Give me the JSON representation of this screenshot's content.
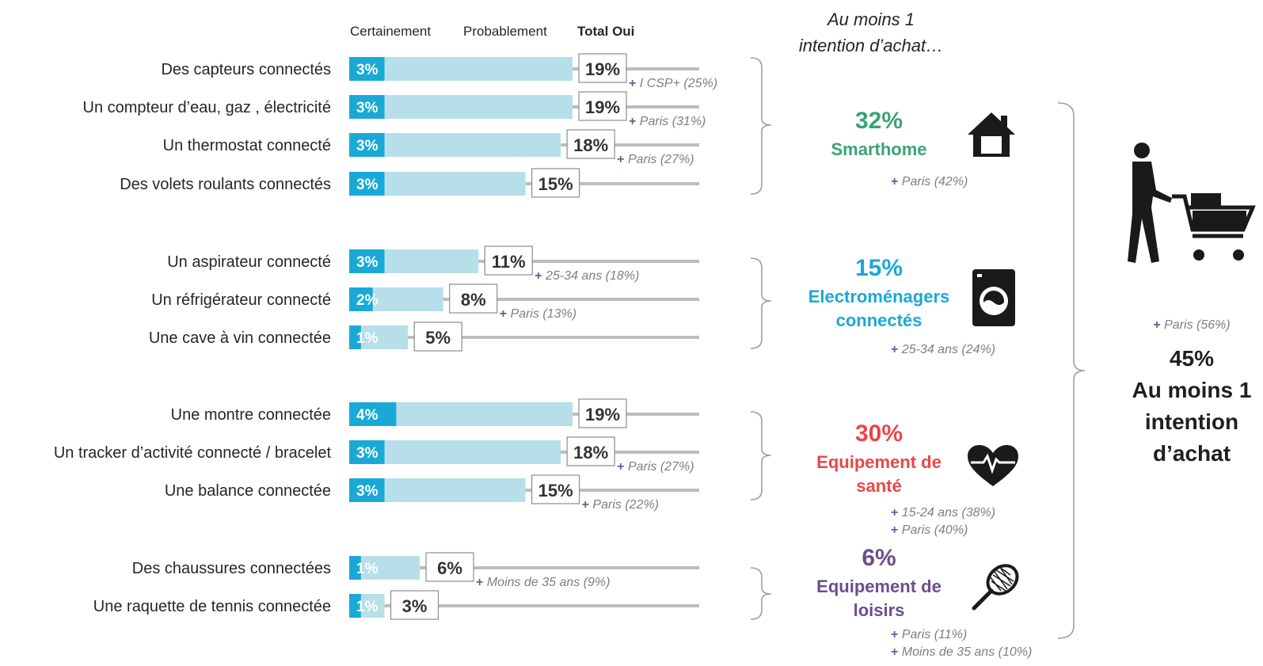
{
  "header": {
    "col_certainement": "Certainement",
    "col_probablement": "Probablement",
    "col_total": "Total Oui",
    "top_note_line1": "Au moins 1",
    "top_note_line2": "intention d’achat…"
  },
  "colors": {
    "certainement": "#1aa9d6",
    "probablement": "#b7dfe9",
    "smarthome": "#3aa374",
    "electromenagers": "#1aa9d6",
    "sante": "#e8474b",
    "loisirs": "#6b4e8f",
    "subgroup_plus": "#6b5b95"
  },
  "chart_data": {
    "type": "bar",
    "orientation": "horizontal",
    "stacked": true,
    "series": [
      {
        "name": "Certainement",
        "values": [
          3,
          3,
          3,
          3,
          3,
          2,
          1,
          4,
          3,
          3,
          1,
          1
        ]
      },
      {
        "name": "Probablement",
        "values": [
          16,
          16,
          15,
          12,
          8,
          6,
          4,
          15,
          15,
          12,
          5,
          2
        ]
      }
    ],
    "categories": [
      "Des capteurs connectés",
      "Un compteur d’eau, gaz , électricité",
      "Un thermostat connecté",
      "Des volets roulants connectés",
      "Un aspirateur connecté",
      "Un réfrigérateur connecté",
      "Une cave à vin connectée",
      "Une montre connectée",
      "Un tracker d’activité connecté /  bracelet",
      "Une balance connectée",
      "Des chaussures connectées",
      "Une raquette de tennis connectée"
    ],
    "cert_labels": [
      "3%",
      "3%",
      "3%",
      "3%",
      "3%",
      "2%",
      "1%",
      "4%",
      "3%",
      "3%",
      "1%",
      "1%"
    ],
    "totals": [
      19,
      19,
      18,
      15,
      11,
      8,
      5,
      19,
      18,
      15,
      6,
      3
    ],
    "total_labels": [
      "19%",
      "19%",
      "18%",
      "15%",
      "11%",
      "8%",
      "5%",
      "19%",
      "18%",
      "15%",
      "6%",
      "3%"
    ],
    "row_notes": [
      "+ I CSP+ (25%)",
      "+ Paris (31%)",
      "+ Paris (27%)",
      "",
      "+ 25-34 ans (18%)",
      "+ Paris (13%)",
      "",
      "",
      "+ Paris (27%)",
      "+ Paris (22%)",
      "+ Moins de 35 ans (9%)",
      ""
    ],
    "groups": [
      {
        "pct": "32%",
        "name_lines": [
          "Smarthome"
        ],
        "notes": [
          "+ Paris (42%)"
        ]
      },
      {
        "pct": "15%",
        "name_lines": [
          "Electroménagers",
          "connectés"
        ],
        "notes": [
          "+ 25-34 ans (24%)"
        ]
      },
      {
        "pct": "30%",
        "name_lines": [
          "Equipement de",
          "santé"
        ],
        "notes": [
          "+ 15-24 ans (38%)",
          "+ Paris (40%)"
        ]
      },
      {
        "pct": "6%",
        "name_lines": [
          "Equipement de",
          "loisirs"
        ],
        "notes": [
          "+ Paris (11%)",
          "+ Moins de 35 ans (10%)"
        ]
      }
    ],
    "overall": {
      "note": "+ Paris (56%)",
      "pct": "45%",
      "label_lines": [
        "Au moins 1",
        "intention",
        "d’achat"
      ]
    },
    "xlim": [
      0,
      19
    ]
  },
  "icons": [
    "house-icon",
    "washing-machine-icon",
    "heart-pulse-icon",
    "tennis-racket-icon",
    "shopping-cart-person-icon"
  ]
}
